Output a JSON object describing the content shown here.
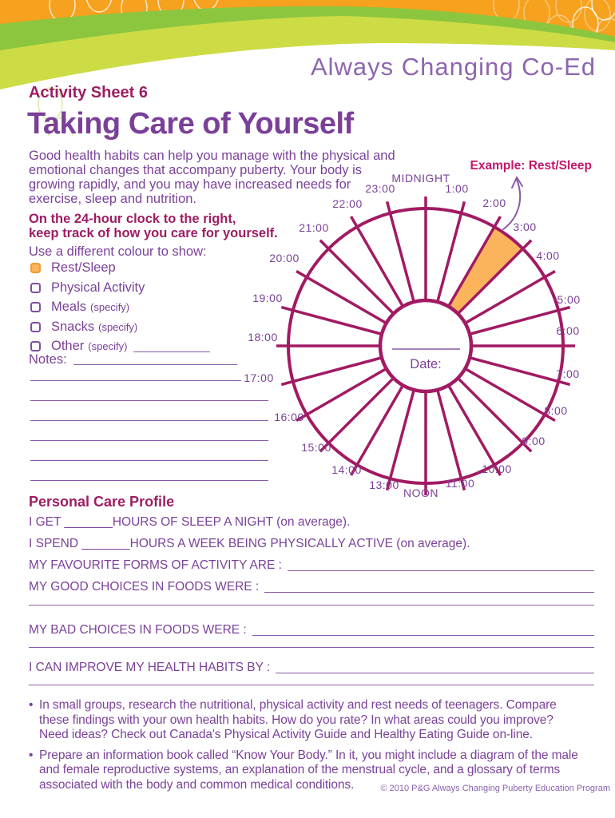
{
  "header": {
    "brand": "Always Changing Co-Ed",
    "sheet_label": "Activity Sheet 6",
    "title": "Taking Care of Yourself",
    "colors": {
      "orange": "#F6A21E",
      "green_dark": "#8CC63E",
      "green_light": "#CDDC45",
      "brand_purple": "#8E66AF"
    }
  },
  "intro": {
    "paragraph": "Good health habits can help you manage with the physical and\nemotional changes that accompany puberty. Your body is\ngrowing rapidly, and you may have increased needs for\nexercise, sleep and nutrition.",
    "instruction": "On the 24-hour clock to the right,\nkeep track of how you care for yourself.",
    "legend_intro": "Use a different colour to show:"
  },
  "legend": {
    "items": [
      {
        "label": "Rest/Sleep",
        "suffix": "",
        "checked": true
      },
      {
        "label": "Physical Activity",
        "suffix": "",
        "checked": false
      },
      {
        "label": "Meals",
        "suffix": "(specify)",
        "checked": false
      },
      {
        "label": "Snacks",
        "suffix": "(specify)",
        "checked": false
      },
      {
        "label": "Other",
        "suffix": "(specify)",
        "checked": false
      }
    ],
    "checked_color": "#FBB45C"
  },
  "notes_label": "Notes:",
  "clock": {
    "example_label": "Example: Rest/Sleep",
    "date_label": "Date:",
    "hour_labels": [
      "MIDNIGHT",
      "1:00",
      "2:00",
      "3:00",
      "4:00",
      "5:00",
      "6:00",
      "7:00",
      "8:00",
      "9:00",
      "10:00",
      "11:00",
      "NOON",
      "13:00",
      "14:00",
      "15:00",
      "16:00",
      "17:00",
      "18:00",
      "19:00",
      "20:00",
      "21:00",
      "22:00",
      "23:00"
    ],
    "highlight": {
      "from_hour": 2,
      "to_hour": 3,
      "fill": "#FBB45C",
      "meaning": "Example: Rest/Sleep"
    },
    "spoke_color": "#A21A63",
    "label_color": "#7B4299",
    "example_color": "#C2186B"
  },
  "profile": {
    "heading": "Personal Care Profile",
    "rows": [
      {
        "text": "I GET _______HOURS OF SLEEP A NIGHT (on average)."
      },
      {
        "text": "I SPEND _______HOURS A WEEK BEING PHYSICALLY ACTIVE (on average)."
      },
      {
        "text": "MY FAVOURITE FORMS OF ACTIVITY ARE :"
      },
      {
        "text": "MY GOOD CHOICES IN FOODS WERE :"
      },
      {
        "text": "MY BAD CHOICES IN FOODS WERE :"
      },
      {
        "text": "I CAN IMPROVE MY HEALTH HABITS BY :"
      }
    ]
  },
  "bullets": [
    "In small groups, research the nutritional, physical activity and rest needs of teenagers. Compare\nthese findings with your own health habits. How do you rate? In what areas could you improve?\nNeed ideas? Check out Canada's Physical Activity Guide and Healthy Eating Guide on-line.",
    "Prepare an information book called “Know Your Body.” In it, you might include a diagram of the male\nand female reproductive systems, an explanation of the menstrual cycle, and a glossary of terms\nassociated with the body and common medical conditions."
  ],
  "copyright": "© 2010 P&G Always Changing Puberty Education Program"
}
